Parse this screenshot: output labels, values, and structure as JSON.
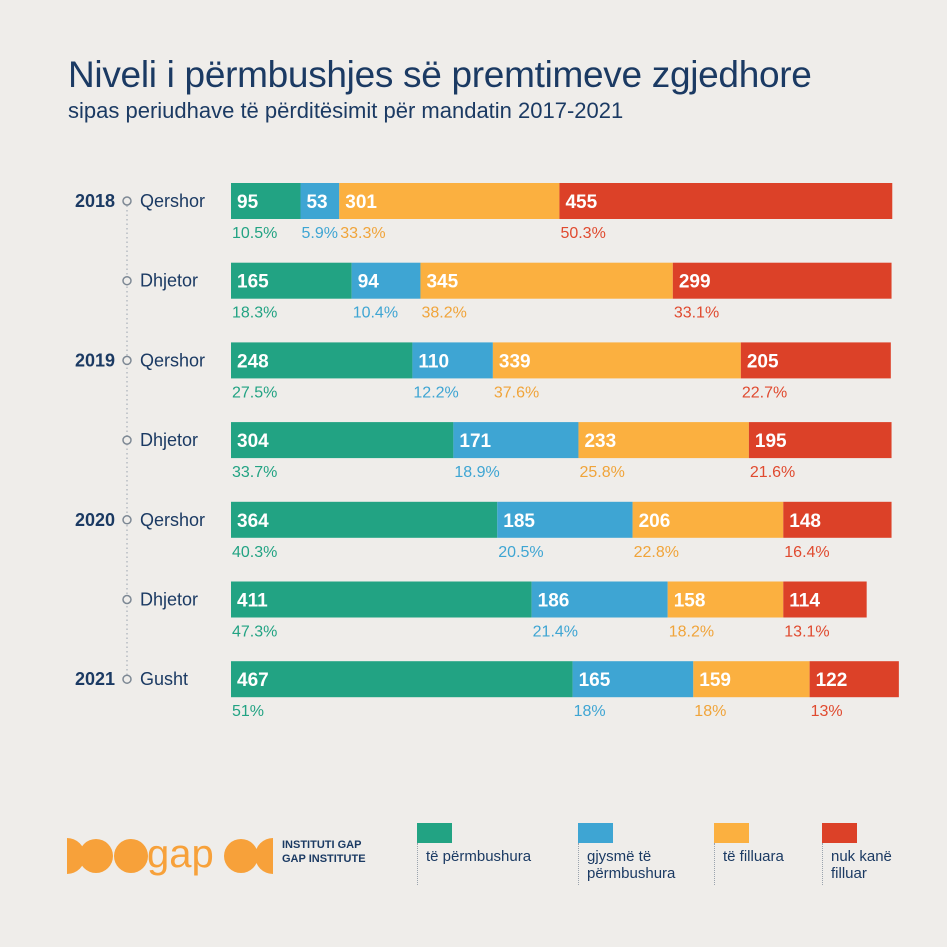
{
  "title": "Niveli i përmbushjes së premtimeve zgjedhore",
  "subtitle": "sipas periudhave të përditësimit për mandatin 2017-2021",
  "colors": {
    "fulfilled": "#22a383",
    "half": "#3ea5d3",
    "started": "#fbb040",
    "not_started": "#dc4128",
    "text_dark": "#1b3a63",
    "background": "#efedea",
    "logo": "#f7a13a"
  },
  "organization": {
    "logo_text": "gap",
    "name_sq": "INSTITUTI GAP",
    "name_en": "GAP INSTITUTE"
  },
  "chart_data": {
    "type": "bar",
    "orientation": "horizontal-stacked",
    "rows": [
      {
        "year": "2018",
        "period": "Qershor",
        "values": [
          95,
          53,
          301,
          455
        ],
        "percents": [
          "10.5%",
          "5.9%",
          "33.3%",
          "50.3%"
        ]
      },
      {
        "year": "",
        "period": "Dhjetor",
        "values": [
          165,
          94,
          345,
          299
        ],
        "percents": [
          "18.3%",
          "10.4%",
          "38.2%",
          "33.1%"
        ]
      },
      {
        "year": "2019",
        "period": "Qershor",
        "values": [
          248,
          110,
          339,
          205
        ],
        "percents": [
          "27.5%",
          "12.2%",
          "37.6%",
          "22.7%"
        ]
      },
      {
        "year": "",
        "period": "Dhjetor",
        "values": [
          304,
          171,
          233,
          195
        ],
        "percents": [
          "33.7%",
          "18.9%",
          "25.8%",
          "21.6%"
        ]
      },
      {
        "year": "2020",
        "period": "Qershor",
        "values": [
          364,
          185,
          206,
          148
        ],
        "percents": [
          "40.3%",
          "20.5%",
          "22.8%",
          "16.4%"
        ]
      },
      {
        "year": "",
        "period": "Dhjetor",
        "values": [
          411,
          186,
          158,
          114
        ],
        "percents": [
          "47.3%",
          "21.4%",
          "18.2%",
          "13.1%"
        ]
      },
      {
        "year": "2021",
        "period": "Gusht",
        "values": [
          467,
          165,
          159,
          122
        ],
        "percents": [
          "51%",
          "18%",
          "18%",
          "13%"
        ]
      }
    ],
    "series": [
      {
        "name": "të përmbushura"
      },
      {
        "name": "gjysmë të përmbushura"
      },
      {
        "name": "të filluara"
      },
      {
        "name": "nuk kanë filluar"
      }
    ],
    "legend_position": "bottom",
    "grid": false
  }
}
